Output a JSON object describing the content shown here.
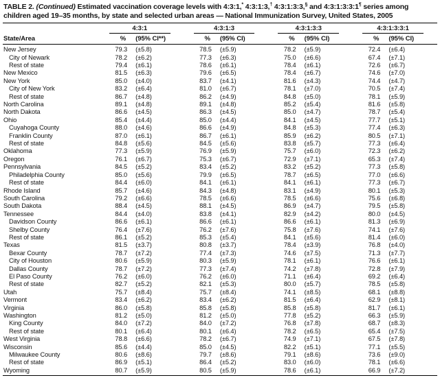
{
  "title": {
    "parts": [
      {
        "t": "TABLE 2. "
      },
      {
        "t": "(Continued)",
        "italic": true
      },
      {
        "t": " Estimated vaccination coverage levels with 4:3:1,"
      },
      {
        "t": "*",
        "sup": true
      },
      {
        "t": " 4:3:1:3,"
      },
      {
        "t": "†",
        "sup": true
      },
      {
        "t": " 4:3:1:3:3,"
      },
      {
        "t": "§",
        "sup": true
      },
      {
        "t": " and 4:3:1:3:3:1"
      },
      {
        "t": "¶",
        "sup": true
      },
      {
        "t": " series among"
      },
      {
        "br": true
      },
      {
        "t": "children aged 19–35 months, by state and selected urban areas — National Immunization Survey, United States, 2005"
      }
    ]
  },
  "table": {
    "row_header": "State/Area",
    "groups": [
      {
        "label": "4:3:1",
        "pct": "%",
        "ci": "(95% CI**)"
      },
      {
        "label": "4:3:1:3",
        "pct": "%",
        "ci": "(95% CI)"
      },
      {
        "label": "4:3:1:3:3",
        "pct": "%",
        "ci": "(95% CI)"
      },
      {
        "label": "4:3:1:3:3:1",
        "pct": "%",
        "ci": "(95% CI)"
      }
    ],
    "rows": [
      {
        "area": "New Jersey",
        "indent": false,
        "v": [
          "79.3",
          "(±5.8)",
          "78.5",
          "(±5.9)",
          "78.2",
          "(±5.9)",
          "72.4",
          "(±6.4)"
        ]
      },
      {
        "area": "City of Newark",
        "indent": true,
        "v": [
          "78.2",
          "(±6.2)",
          "77.3",
          "(±6.3)",
          "75.0",
          "(±6.6)",
          "67.4",
          "(±7.1)"
        ]
      },
      {
        "area": "Rest of state",
        "indent": true,
        "v": [
          "79.4",
          "(±6.1)",
          "78.6",
          "(±6.1)",
          "78.4",
          "(±6.1)",
          "72.6",
          "(±6.7)"
        ]
      },
      {
        "area": "New Mexico",
        "indent": false,
        "v": [
          "81.5",
          "(±6.3)",
          "79.6",
          "(±6.5)",
          "78.4",
          "(±6.7)",
          "74.6",
          "(±7.0)"
        ]
      },
      {
        "area": "New York",
        "indent": false,
        "v": [
          "85.0",
          "(±4.0)",
          "83.7",
          "(±4.1)",
          "81.6",
          "(±4.3)",
          "74.4",
          "(±4.7)"
        ]
      },
      {
        "area": "City of New York",
        "indent": true,
        "v": [
          "83.2",
          "(±6.4)",
          "81.0",
          "(±6.7)",
          "78.1",
          "(±7.0)",
          "70.5",
          "(±7.4)"
        ]
      },
      {
        "area": "Rest of state",
        "indent": true,
        "v": [
          "86.7",
          "(±4.8)",
          "86.2",
          "(±4.9)",
          "84.8",
          "(±5.0)",
          "78.1",
          "(±5.9)"
        ]
      },
      {
        "area": "North Carolina",
        "indent": false,
        "v": [
          "89.1",
          "(±4.8)",
          "89.1",
          "(±4.8)",
          "85.2",
          "(±5.4)",
          "81.6",
          "(±5.8)"
        ]
      },
      {
        "area": "North Dakota",
        "indent": false,
        "v": [
          "86.6",
          "(±4.5)",
          "86.3",
          "(±4.5)",
          "85.0",
          "(±4.7)",
          "78.7",
          "(±5.4)"
        ]
      },
      {
        "area": "Ohio",
        "indent": false,
        "v": [
          "85.4",
          "(±4.4)",
          "85.0",
          "(±4.4)",
          "84.1",
          "(±4.5)",
          "77.7",
          "(±5.1)"
        ]
      },
      {
        "area": "Cuyahoga County",
        "indent": true,
        "v": [
          "88.0",
          "(±4.6)",
          "86.6",
          "(±4.9)",
          "84.8",
          "(±5.3)",
          "77.4",
          "(±6.3)"
        ]
      },
      {
        "area": "Franklin County",
        "indent": true,
        "v": [
          "87.0",
          "(±6.1)",
          "86.7",
          "(±6.1)",
          "85.9",
          "(±6.2)",
          "80.5",
          "(±7.1)"
        ]
      },
      {
        "area": "Rest of state",
        "indent": true,
        "v": [
          "84.8",
          "(±5.6)",
          "84.5",
          "(±5.6)",
          "83.8",
          "(±5.7)",
          "77.3",
          "(±6.4)"
        ]
      },
      {
        "area": "Oklahoma",
        "indent": false,
        "v": [
          "77.3",
          "(±5.9)",
          "76.9",
          "(±5.9)",
          "75.7",
          "(±6.0)",
          "72.3",
          "(±6.2)"
        ]
      },
      {
        "area": "Oregon",
        "indent": false,
        "v": [
          "76.1",
          "(±6.7)",
          "75.3",
          "(±6.7)",
          "72.9",
          "(±7.1)",
          "65.3",
          "(±7.4)"
        ]
      },
      {
        "area": "Pennsylvania",
        "indent": false,
        "v": [
          "84.5",
          "(±5.2)",
          "83.4",
          "(±5.2)",
          "83.2",
          "(±5.2)",
          "77.3",
          "(±5.8)"
        ]
      },
      {
        "area": "Philadelphia County",
        "indent": true,
        "v": [
          "85.0",
          "(±5.6)",
          "79.9",
          "(±6.5)",
          "78.7",
          "(±6.5)",
          "77.0",
          "(±6.6)"
        ]
      },
      {
        "area": "Rest of state",
        "indent": true,
        "v": [
          "84.4",
          "(±6.0)",
          "84.1",
          "(±6.1)",
          "84.1",
          "(±6.1)",
          "77.3",
          "(±6.7)"
        ]
      },
      {
        "area": "Rhode Island",
        "indent": false,
        "v": [
          "85.7",
          "(±4.6)",
          "84.3",
          "(±4.8)",
          "83.1",
          "(±4.9)",
          "80.1",
          "(±5.3)"
        ]
      },
      {
        "area": "South Carolina",
        "indent": false,
        "v": [
          "79.2",
          "(±6.6)",
          "78.5",
          "(±6.6)",
          "78.5",
          "(±6.6)",
          "75.6",
          "(±6.8)"
        ]
      },
      {
        "area": "South Dakota",
        "indent": false,
        "v": [
          "88.4",
          "(±4.5)",
          "88.1",
          "(±4.5)",
          "86.9",
          "(±4.7)",
          "79.5",
          "(±5.8)"
        ]
      },
      {
        "area": "Tennessee",
        "indent": false,
        "v": [
          "84.4",
          "(±4.0)",
          "83.8",
          "(±4.1)",
          "82.9",
          "(±4.2)",
          "80.0",
          "(±4.5)"
        ]
      },
      {
        "area": "Davidson County",
        "indent": true,
        "v": [
          "86.6",
          "(±6.1)",
          "86.6",
          "(±6.1)",
          "86.6",
          "(±6.1)",
          "81.3",
          "(±6.9)"
        ]
      },
      {
        "area": "Shelby County",
        "indent": true,
        "v": [
          "76.4",
          "(±7.6)",
          "76.2",
          "(±7.6)",
          "75.8",
          "(±7.6)",
          "74.1",
          "(±7.6)"
        ]
      },
      {
        "area": "Rest of state",
        "indent": true,
        "v": [
          "86.1",
          "(±5.2)",
          "85.3",
          "(±5.4)",
          "84.1",
          "(±5.6)",
          "81.4",
          "(±6.0)"
        ]
      },
      {
        "area": "Texas",
        "indent": false,
        "v": [
          "81.5",
          "(±3.7)",
          "80.8",
          "(±3.7)",
          "78.4",
          "(±3.9)",
          "76.8",
          "(±4.0)"
        ]
      },
      {
        "area": "Bexar County",
        "indent": true,
        "v": [
          "78.7",
          "(±7.2)",
          "77.4",
          "(±7.3)",
          "74.6",
          "(±7.5)",
          "71.3",
          "(±7.7)"
        ]
      },
      {
        "area": "City of Houston",
        "indent": true,
        "v": [
          "80.6",
          "(±5.9)",
          "80.3",
          "(±5.9)",
          "78.1",
          "(±6.1)",
          "76.6",
          "(±6.1)"
        ]
      },
      {
        "area": "Dallas County",
        "indent": true,
        "v": [
          "78.7",
          "(±7.2)",
          "77.3",
          "(±7.4)",
          "74.2",
          "(±7.8)",
          "72.8",
          "(±7.9)"
        ]
      },
      {
        "area": "El Paso County",
        "indent": true,
        "v": [
          "76.2",
          "(±6.0)",
          "76.2",
          "(±6.0)",
          "71.1",
          "(±6.4)",
          "69.2",
          "(±6.4)"
        ]
      },
      {
        "area": "Rest of state",
        "indent": true,
        "v": [
          "82.7",
          "(±5.2)",
          "82.1",
          "(±5.3)",
          "80.0",
          "(±5.7)",
          "78.5",
          "(±5.8)"
        ]
      },
      {
        "area": "Utah",
        "indent": false,
        "v": [
          "75.7",
          "(±8.4)",
          "75.7",
          "(±8.4)",
          "74.1",
          "(±8.5)",
          "68.1",
          "(±8.8)"
        ]
      },
      {
        "area": "Vermont",
        "indent": false,
        "v": [
          "83.4",
          "(±6.2)",
          "83.4",
          "(±6.2)",
          "81.5",
          "(±6.4)",
          "62.9",
          "(±8.1)"
        ]
      },
      {
        "area": "Virginia",
        "indent": false,
        "v": [
          "86.0",
          "(±5.8)",
          "85.8",
          "(±5.8)",
          "85.8",
          "(±5.8)",
          "81.7",
          "(±6.1)"
        ]
      },
      {
        "area": "Washington",
        "indent": false,
        "v": [
          "81.2",
          "(±5.0)",
          "81.2",
          "(±5.0)",
          "77.8",
          "(±5.2)",
          "66.3",
          "(±5.9)"
        ]
      },
      {
        "area": "King County",
        "indent": true,
        "v": [
          "84.0",
          "(±7.2)",
          "84.0",
          "(±7.2)",
          "76.8",
          "(±7.8)",
          "68.7",
          "(±8.3)"
        ]
      },
      {
        "area": "Rest of state",
        "indent": true,
        "v": [
          "80.1",
          "(±6.4)",
          "80.1",
          "(±6.4)",
          "78.2",
          "(±6.5)",
          "65.4",
          "(±7.5)"
        ]
      },
      {
        "area": "West Virginia",
        "indent": false,
        "v": [
          "78.8",
          "(±6.6)",
          "78.2",
          "(±6.7)",
          "74.9",
          "(±7.1)",
          "67.5",
          "(±7.8)"
        ]
      },
      {
        "area": "Wisconsin",
        "indent": false,
        "v": [
          "85.6",
          "(±4.4)",
          "85.0",
          "(±4.5)",
          "82.2",
          "(±5.1)",
          "77.1",
          "(±5.5)"
        ]
      },
      {
        "area": "Milwaukee County",
        "indent": true,
        "v": [
          "80.6",
          "(±8.6)",
          "79.7",
          "(±8.6)",
          "79.1",
          "(±8.6)",
          "73.6",
          "(±9.0)"
        ]
      },
      {
        "area": "Rest of state",
        "indent": true,
        "v": [
          "86.9",
          "(±5.1)",
          "86.4",
          "(±5.2)",
          "83.0",
          "(±6.0)",
          "78.1",
          "(±6.6)"
        ]
      },
      {
        "area": "Wyoming",
        "indent": false,
        "v": [
          "80.7",
          "(±5.9)",
          "80.5",
          "(±5.9)",
          "78.6",
          "(±6.1)",
          "66.9",
          "(±7.2)"
        ]
      }
    ]
  }
}
